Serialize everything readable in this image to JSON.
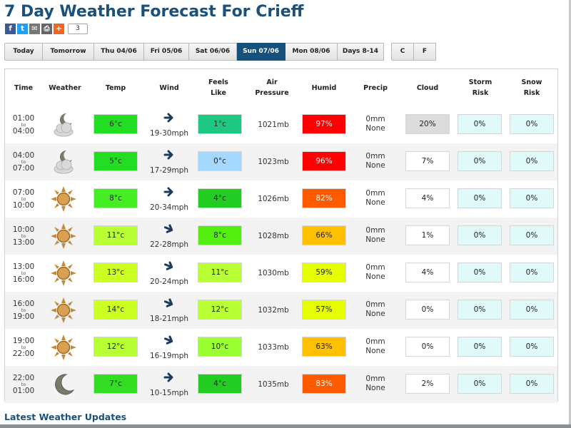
{
  "title": "7 Day Weather Forecast For Crieff",
  "share": {
    "count": "3"
  },
  "day_tabs": [
    "Today",
    "Tomorrow",
    "Thu 04/06",
    "Fri 05/06",
    "Sat 06/06",
    "Sun 07/06",
    "Mon 08/06",
    "Days 8-14"
  ],
  "active_tab": "Sun 07/06",
  "unit_tabs": [
    "C",
    "F"
  ],
  "headers": {
    "time": "Time",
    "weather": "Weather",
    "temp": "Temp",
    "wind": "Wind",
    "feels": "Feels Like",
    "pressure": "Air Pressure",
    "humid": "Humid",
    "precip": "Precip",
    "cloud": "Cloud",
    "storm": "Storm Risk",
    "snow": "Snow Risk"
  },
  "rows": [
    {
      "from": "01:00",
      "to_label": "to",
      "until": "04:00",
      "weather_icon": "cloudy-night-icon",
      "temp": "6°c",
      "temp_color": "#22dd22",
      "wind": "19-30mph",
      "feels": "1°c",
      "feels_color": "#1ec882",
      "pressure": "1021mb",
      "humid": "97%",
      "humid_color": "#ff0000",
      "precip_mm": "0mm",
      "precip_type": "None",
      "cloud": "20%",
      "cloud_color": "#dcdcdc",
      "storm": "0%",
      "snow": "0%"
    },
    {
      "from": "04:00",
      "to_label": "to",
      "until": "07:00",
      "weather_icon": "cloudy-night-icon",
      "temp": "5°c",
      "temp_color": "#22dd22",
      "wind": "17-29mph",
      "feels": "0°c",
      "feels_color": "#a5d8ff",
      "pressure": "1023mb",
      "humid": "96%",
      "humid_color": "#ff0000",
      "precip_mm": "0mm",
      "precip_type": "None",
      "cloud": "7%",
      "cloud_color": "#ffffff",
      "storm": "0%",
      "snow": "0%"
    },
    {
      "from": "07:00",
      "to_label": "to",
      "until": "10:00",
      "weather_icon": "sun-icon",
      "temp": "8°c",
      "temp_color": "#44ee22",
      "wind": "20-34mph",
      "feels": "4°c",
      "feels_color": "#22cc22",
      "pressure": "1026mb",
      "humid": "82%",
      "humid_color": "#ff5a00",
      "precip_mm": "0mm",
      "precip_type": "None",
      "cloud": "4%",
      "cloud_color": "#ffffff",
      "storm": "0%",
      "snow": "0%"
    },
    {
      "from": "10:00",
      "to_label": "to",
      "until": "13:00",
      "weather_icon": "sun-icon",
      "temp": "11°c",
      "temp_color": "#b8ff33",
      "wind": "22-28mph",
      "feels": "8°c",
      "feels_color": "#55ee11",
      "pressure": "1028mb",
      "humid": "66%",
      "humid_color": "#ffc000",
      "precip_mm": "0mm",
      "precip_type": "None",
      "cloud": "1%",
      "cloud_color": "#ffffff",
      "storm": "0%",
      "snow": "0%"
    },
    {
      "from": "13:00",
      "to_label": "to",
      "until": "16:00",
      "weather_icon": "sun-icon",
      "temp": "13°c",
      "temp_color": "#ccff22",
      "wind": "20-24mph",
      "feels": "11°c",
      "feels_color": "#b8ff33",
      "pressure": "1030mb",
      "humid": "59%",
      "humid_color": "#e6ff00",
      "precip_mm": "0mm",
      "precip_type": "None",
      "cloud": "4%",
      "cloud_color": "#ffffff",
      "storm": "0%",
      "snow": "0%"
    },
    {
      "from": "16:00",
      "to_label": "to",
      "until": "19:00",
      "weather_icon": "sun-icon",
      "temp": "14°c",
      "temp_color": "#ccff22",
      "wind": "18-21mph",
      "feels": "12°c",
      "feels_color": "#b8ff33",
      "pressure": "1032mb",
      "humid": "57%",
      "humid_color": "#e6ff00",
      "precip_mm": "0mm",
      "precip_type": "None",
      "cloud": "0%",
      "cloud_color": "#ffffff",
      "storm": "0%",
      "snow": "0%"
    },
    {
      "from": "19:00",
      "to_label": "to",
      "until": "22:00",
      "weather_icon": "sun-icon",
      "temp": "12°c",
      "temp_color": "#b8ff33",
      "wind": "16-19mph",
      "feels": "10°c",
      "feels_color": "#99ff33",
      "pressure": "1033mb",
      "humid": "63%",
      "humid_color": "#ffc000",
      "precip_mm": "0mm",
      "precip_type": "None",
      "cloud": "0%",
      "cloud_color": "#ffffff",
      "storm": "0%",
      "snow": "0%"
    },
    {
      "from": "22:00",
      "to_label": "to",
      "until": "01:00",
      "weather_icon": "moon-icon",
      "temp": "7°c",
      "temp_color": "#33dd22",
      "wind": "10-15mph",
      "feels": "4°c",
      "feels_color": "#22cc22",
      "pressure": "1035mb",
      "humid": "83%",
      "humid_color": "#ff5a00",
      "precip_mm": "0mm",
      "precip_type": "None",
      "cloud": "2%",
      "cloud_color": "#ffffff",
      "storm": "0%",
      "snow": "0%"
    }
  ],
  "storm_color": "#e0fafa",
  "snow_color": "#e0fafa",
  "latest_updates": "Latest Weather Updates"
}
